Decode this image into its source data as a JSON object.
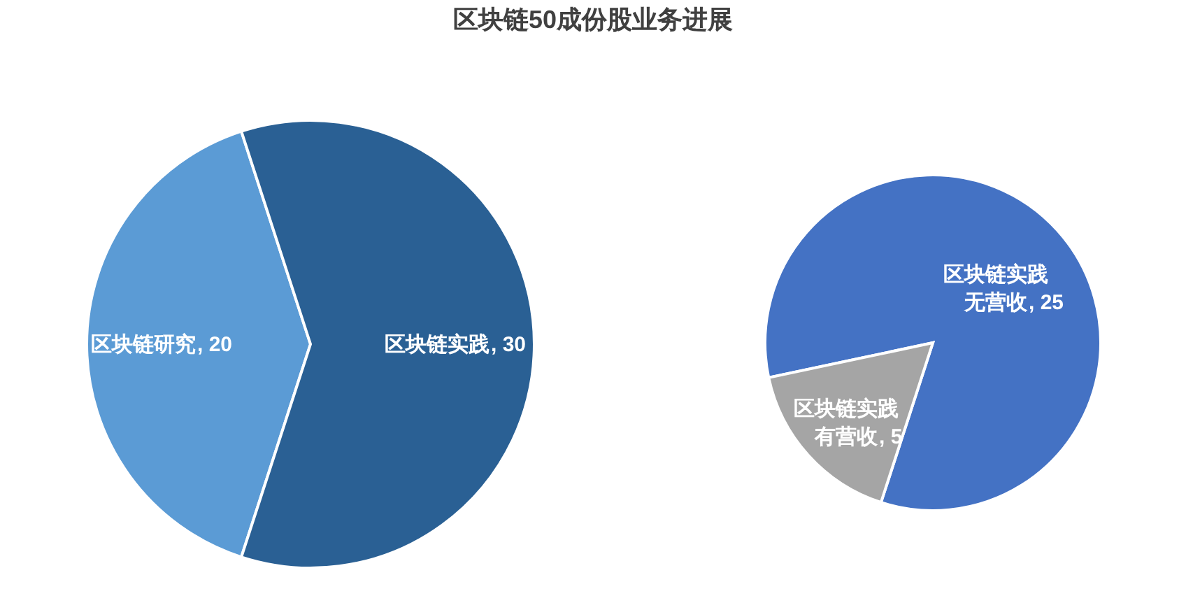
{
  "chart_data": [
    {
      "type": "pie",
      "title": "区块链50成份股业务进展",
      "categories": [
        "区块链研究",
        "区块链实践"
      ],
      "values": [
        20,
        30
      ],
      "colors": [
        "#5b9bd5",
        "#2a6094"
      ],
      "value_labels": [
        ", 20",
        ", 30"
      ]
    },
    {
      "type": "pie",
      "categories": [
        "区块链实践无营收",
        "区块链实践有营收"
      ],
      "values": [
        25,
        5
      ],
      "colors": [
        "#4472c4",
        "#a5a5a5"
      ],
      "value_labels": [
        ", 25",
        ", 5"
      ]
    }
  ]
}
